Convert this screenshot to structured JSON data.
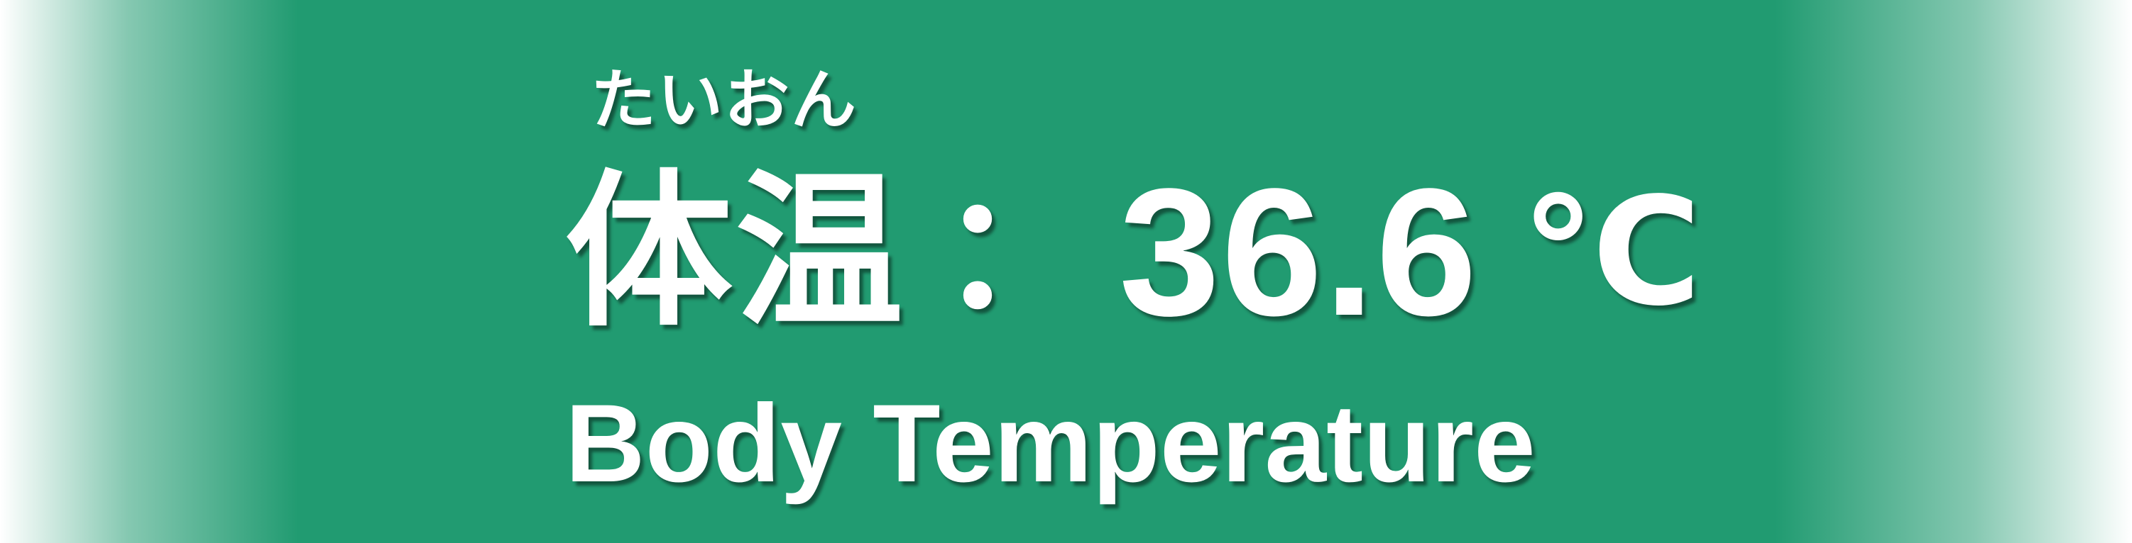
{
  "reading": "たいおん",
  "label_ja": "体温",
  "separator": "：",
  "value": "36.6",
  "unit": "℃",
  "label_en": "Body Temperature",
  "colors": {
    "background": "#219B71",
    "text": "#FFFFFF"
  }
}
